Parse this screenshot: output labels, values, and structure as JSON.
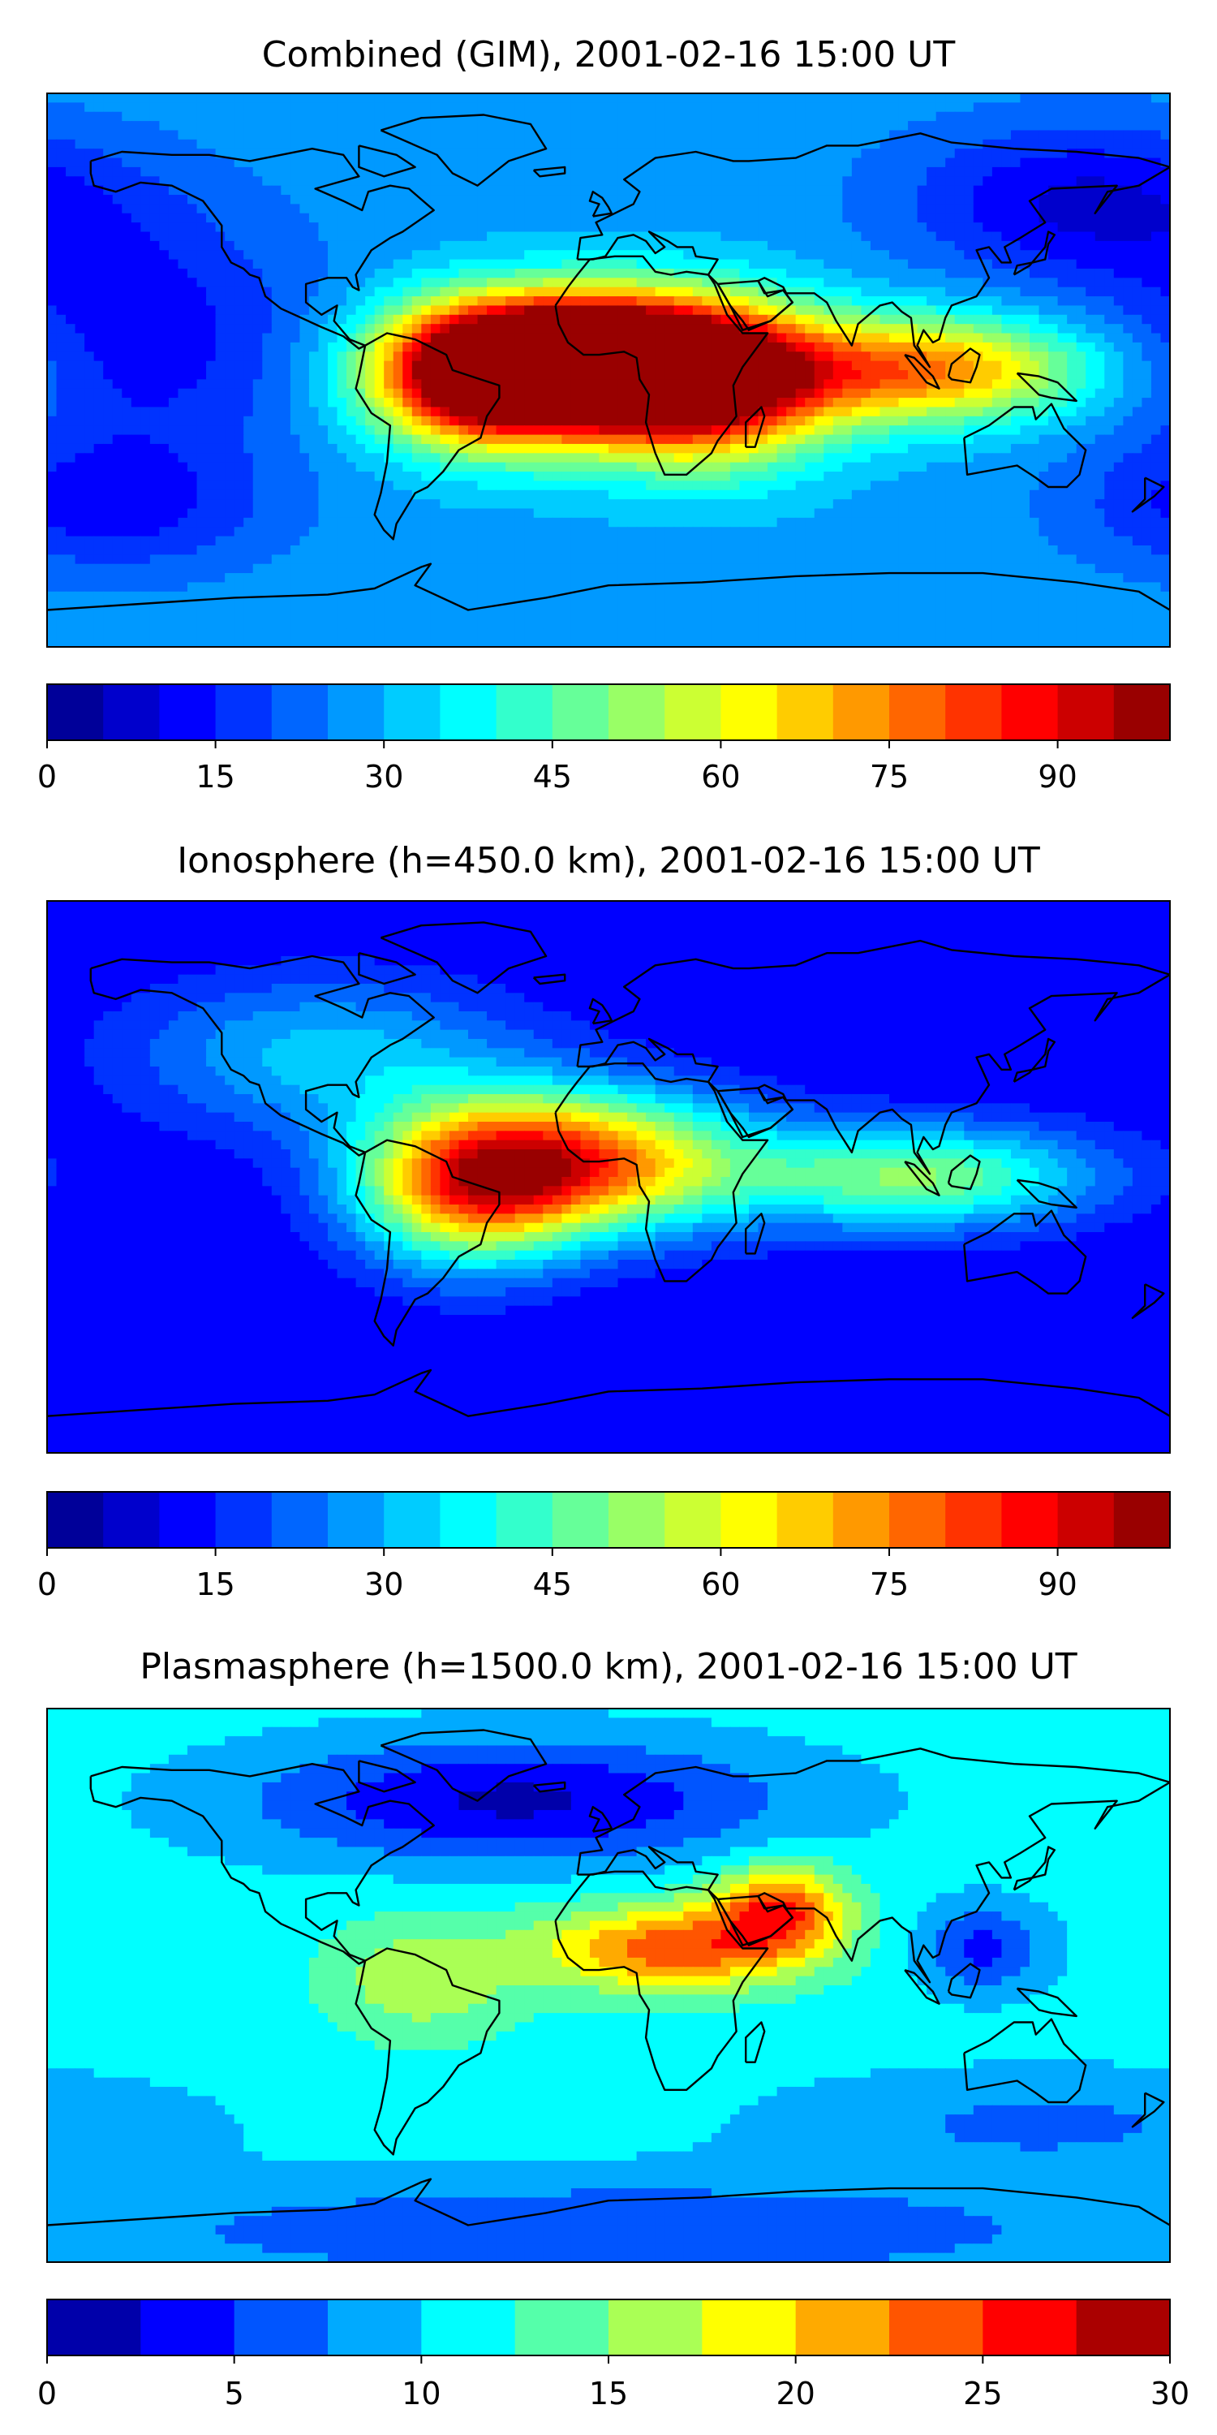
{
  "chart_data": [
    {
      "type": "heatmap",
      "title": "Combined (GIM), 2001-02-16 15:00 UT",
      "map_projection": "global equirectangular with coastlines",
      "colormap": "jet",
      "color_range": [
        0,
        100
      ],
      "color_levels": [
        0,
        5,
        10,
        15,
        20,
        25,
        30,
        35,
        40,
        45,
        50,
        55,
        60,
        65,
        70,
        75,
        80,
        85,
        90,
        95,
        100
      ],
      "colorbar_ticks": [
        0,
        15,
        30,
        45,
        60,
        75,
        90
      ],
      "background_value": 28,
      "features": [
        {
          "lon": -5,
          "lat": 3,
          "peak": 97,
          "lon_spread": 33,
          "lat_spread": 14
        },
        {
          "lon": -40,
          "lat": -2,
          "peak": 70,
          "lon_spread": 25,
          "lat_spread": 16
        },
        {
          "lon": 30,
          "lat": -5,
          "peak": 62,
          "lon_spread": 28,
          "lat_spread": 18
        },
        {
          "lon": 100,
          "lat": 0,
          "peak": 48,
          "lon_spread": 38,
          "lat_spread": 12
        },
        {
          "lon": -150,
          "lat": 10,
          "peak": -16,
          "lon_spread": 40,
          "lat_spread": 30
        },
        {
          "lon": 150,
          "lat": 55,
          "peak": -18,
          "lon_spread": 40,
          "lat_spread": 18
        },
        {
          "lon": -160,
          "lat": -45,
          "peak": -14,
          "lon_spread": 35,
          "lat_spread": 15
        }
      ]
    },
    {
      "type": "heatmap",
      "title": "Ionosphere  (h=450.0 km), 2001-02-16 15:00 UT",
      "map_projection": "global equirectangular with coastlines",
      "colormap": "jet",
      "color_range": [
        0,
        100
      ],
      "color_levels": [
        0,
        5,
        10,
        15,
        20,
        25,
        30,
        35,
        40,
        45,
        50,
        55,
        60,
        65,
        70,
        75,
        80,
        85,
        90,
        95,
        100
      ],
      "colorbar_ticks": [
        0,
        15,
        30,
        45,
        60,
        75,
        90
      ],
      "background_value": 10,
      "features": [
        {
          "lon": -10,
          "lat": 5,
          "peak": 66,
          "lon_spread": 38,
          "lat_spread": 16
        },
        {
          "lon": -45,
          "lat": -5,
          "peak": 48,
          "lon_spread": 25,
          "lat_spread": 18
        },
        {
          "lon": 100,
          "lat": 0,
          "peak": 40,
          "lon_spread": 40,
          "lat_spread": 12
        },
        {
          "lon": -90,
          "lat": 40,
          "peak": 22,
          "lon_spread": 45,
          "lat_spread": 18
        }
      ]
    },
    {
      "type": "heatmap",
      "title": "Plasmasphere (h=1500.0 km), 2001-02-16 15:00 UT",
      "map_projection": "global equirectangular with coastlines",
      "colormap": "jet",
      "color_range": [
        0,
        30
      ],
      "color_levels": [
        0,
        2.5,
        5,
        7.5,
        10,
        12.5,
        15,
        17.5,
        20,
        22.5,
        25,
        27.5,
        30
      ],
      "colorbar_ticks": [
        0,
        5,
        10,
        15,
        20,
        25,
        30
      ],
      "background_value": 11,
      "features": [
        {
          "lon": 20,
          "lat": 12,
          "peak": 13,
          "lon_spread": 30,
          "lat_spread": 10
        },
        {
          "lon": 55,
          "lat": 25,
          "peak": 13,
          "lon_spread": 15,
          "lat_spread": 10
        },
        {
          "lon": -60,
          "lat": 2,
          "peak": 6,
          "lon_spread": 22,
          "lat_spread": 14
        },
        {
          "lon": -30,
          "lat": 60,
          "peak": -9,
          "lon_spread": 60,
          "lat_spread": 14
        },
        {
          "lon": 140,
          "lat": -45,
          "peak": -4,
          "lon_spread": 60,
          "lat_spread": 12
        },
        {
          "lon": 120,
          "lat": 12,
          "peak": -7,
          "lon_spread": 14,
          "lat_spread": 10
        },
        {
          "lon": 0,
          "lat": -80,
          "peak": -6,
          "lon_spread": 120,
          "lat_spread": 12
        }
      ]
    }
  ],
  "colors": {
    "frame": "#000000",
    "coastline": "#000000"
  }
}
